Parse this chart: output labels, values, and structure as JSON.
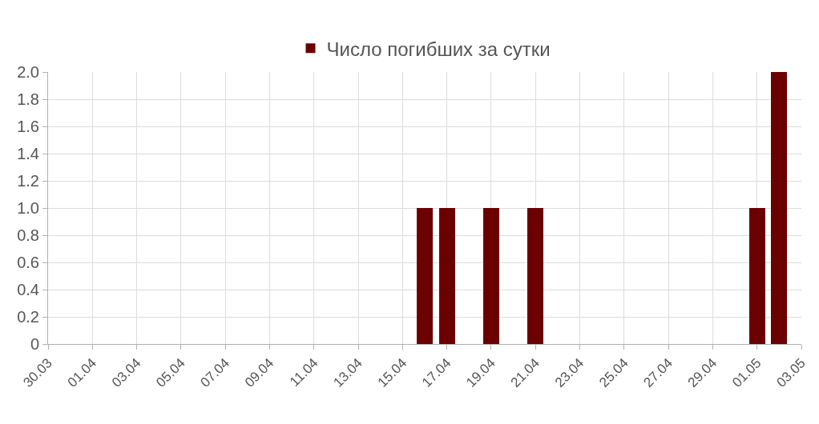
{
  "chart_data": {
    "type": "bar",
    "series": [
      {
        "name": "Число погибших за сутки",
        "color": "#6b0000",
        "x": [
          "--04-16",
          "--04-17",
          "--04-19",
          "--04-21",
          "--05-01",
          "--05-02"
        ],
        "values": [
          1,
          1,
          1,
          1,
          1,
          2
        ]
      }
    ],
    "xlim": [
      "--03-30",
      "--05-03"
    ],
    "xticks": [
      {
        "value": "--03-30",
        "label": "30.03"
      },
      {
        "value": "--04-01",
        "label": "01.04"
      },
      {
        "value": "--04-03",
        "label": "03.04"
      },
      {
        "value": "--04-05",
        "label": "05.04"
      },
      {
        "value": "--04-07",
        "label": "07.04"
      },
      {
        "value": "--04-09",
        "label": "09.04"
      },
      {
        "value": "--04-11",
        "label": "11.04"
      },
      {
        "value": "--04-13",
        "label": "13.04"
      },
      {
        "value": "--04-15",
        "label": "15.04"
      },
      {
        "value": "--04-17",
        "label": "17.04"
      },
      {
        "value": "--04-19",
        "label": "19.04"
      },
      {
        "value": "--04-21",
        "label": "21.04"
      },
      {
        "value": "--04-23",
        "label": "23.04"
      },
      {
        "value": "--04-25",
        "label": "25.04"
      },
      {
        "value": "--04-27",
        "label": "27.04"
      },
      {
        "value": "--04-29",
        "label": "29.04"
      },
      {
        "value": "--05-01",
        "label": "01.05"
      },
      {
        "value": "--05-03",
        "label": "03.05"
      }
    ],
    "ylim": [
      0,
      2
    ],
    "yticks": [
      0,
      {
        "value": 0.2,
        "label": "0.2"
      },
      {
        "value": 0.4,
        "label": "0.4"
      },
      {
        "value": 0.6,
        "label": "0.6"
      },
      {
        "value": 0.8,
        "label": "0.8"
      },
      {
        "value": 1,
        "label": "1.0"
      },
      {
        "value": 1.2,
        "label": "1.2"
      },
      {
        "value": 1.4,
        "label": "1.4"
      },
      {
        "value": 1.6,
        "label": "1.6"
      },
      {
        "value": 1.8,
        "label": "1.8"
      },
      {
        "value": 2,
        "label": "2.0"
      }
    ],
    "grid": true,
    "legend": "top"
  }
}
